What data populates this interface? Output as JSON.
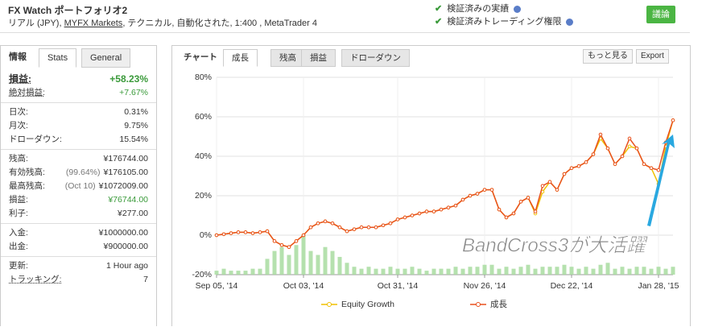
{
  "header": {
    "title": "FX Watch ポートフォリオ2",
    "subtitle_parts": [
      "リアル (JPY),",
      "MYFX Markets",
      ", テクニカル, 自動化された, 1:400 , MetaTrader 4"
    ],
    "checks": [
      "検証済みの実績",
      "検証済みトレーディング権限"
    ],
    "button": "議論"
  },
  "sidebar": {
    "tabs": [
      "情報",
      "Stats",
      "General"
    ],
    "groups": [
      [
        {
          "label": "損益:",
          "value": "+58.23%"
        },
        {
          "label": "絶対損益:",
          "value": "+7.67%"
        }
      ],
      [
        {
          "label": "日次:",
          "value": "0.31%"
        },
        {
          "label": "月次:",
          "value": "9.75%"
        },
        {
          "label": "ドローダウン:",
          "value": "15.54%"
        }
      ],
      [
        {
          "label": "残高:",
          "value": "¥176744.00"
        },
        {
          "label": "有効残高:",
          "note": "(99.64%)",
          "value": "¥176105.00"
        },
        {
          "label": "最高残高:",
          "note": "(Oct 10)",
          "value": "¥1072009.00"
        },
        {
          "label": "損益:",
          "value": "¥76744.00"
        },
        {
          "label": "利子:",
          "value": "¥277.00"
        }
      ],
      [
        {
          "label": "入金:",
          "value": "¥1000000.00"
        },
        {
          "label": "出金:",
          "value": "¥900000.00"
        }
      ],
      [
        {
          "label": "更新:",
          "value": "1 Hour ago"
        },
        {
          "label": "トラッキング:",
          "value": "7"
        }
      ]
    ]
  },
  "chart_panel": {
    "tabs": [
      "チャート",
      "成長",
      "残高",
      "損益",
      "ドローダウン"
    ],
    "buttons": [
      "もっと見る",
      "Export"
    ]
  },
  "chart_data": {
    "type": "line",
    "annotation": "BandCross3が大活躍",
    "xlim": [
      0,
      63
    ],
    "xticks": [
      {
        "value": 0,
        "label": "Sep 05, '14"
      },
      {
        "value": 12,
        "label": "Oct 03, '14"
      },
      {
        "value": 25,
        "label": "Oct 31, '14"
      },
      {
        "value": 37,
        "label": "Nov 26, '14"
      },
      {
        "value": 49,
        "label": "Dec 22, '14"
      },
      {
        "value": 61,
        "label": "Jan 28, '15"
      }
    ],
    "ylim": [
      -20,
      80
    ],
    "yticks": [
      {
        "value": -20,
        "label": "-20%"
      },
      {
        "value": 0,
        "label": "0%"
      },
      {
        "value": 20,
        "label": "20%"
      },
      {
        "value": 40,
        "label": "40%"
      },
      {
        "value": 60,
        "label": "60%"
      },
      {
        "value": 80,
        "label": "80%"
      }
    ],
    "y2lim": [
      0,
      100
    ],
    "grid": true,
    "series": [
      {
        "name": "Equity Growth",
        "color": "#f0c000",
        "values": [
          0,
          0.5,
          1,
          1.5,
          1.5,
          1,
          1.5,
          2,
          -3,
          -5,
          -6,
          -3,
          0,
          4,
          6,
          7,
          6,
          4,
          2,
          3,
          4,
          4,
          4,
          5,
          6,
          8,
          9,
          10,
          11,
          12,
          12,
          13,
          14,
          15,
          18,
          20,
          21,
          23,
          23,
          13,
          9,
          11,
          17,
          19,
          11,
          22,
          27,
          23,
          31,
          34,
          35,
          37,
          41,
          49,
          44,
          36,
          40,
          45,
          44,
          36,
          34,
          26,
          45,
          58.23
        ]
      },
      {
        "name": "成長",
        "color": "#e8501e",
        "values": [
          0,
          0.5,
          1,
          1.5,
          1.5,
          1,
          1.5,
          2,
          -3,
          -5,
          -6,
          -3,
          0,
          4,
          6,
          7,
          6,
          4,
          2,
          3,
          4,
          4,
          4,
          5,
          6,
          8,
          9,
          10,
          11,
          12,
          12,
          13,
          14,
          15,
          18,
          20,
          21,
          23,
          23,
          13,
          9,
          11,
          17,
          19,
          12,
          25,
          27,
          23,
          31,
          34,
          35,
          37,
          41,
          51,
          44,
          36,
          40,
          49,
          44,
          36,
          34,
          33,
          47,
          58.23
        ]
      },
      {
        "type": "bar",
        "axis": "y2",
        "color": "#a8dca0",
        "values": [
          2,
          3,
          2,
          2,
          2,
          3,
          3,
          8,
          12,
          14,
          10,
          15,
          20,
          12,
          10,
          14,
          12,
          9,
          6,
          4,
          3,
          4,
          3,
          3,
          4,
          3,
          3,
          4,
          3,
          2,
          3,
          3,
          3,
          4,
          3,
          4,
          4,
          5,
          5,
          3,
          4,
          3,
          4,
          5,
          3,
          4,
          4,
          4,
          5,
          4,
          3,
          4,
          3,
          5,
          6,
          3,
          4,
          3,
          4,
          4,
          3,
          4,
          3,
          4
        ]
      }
    ]
  }
}
